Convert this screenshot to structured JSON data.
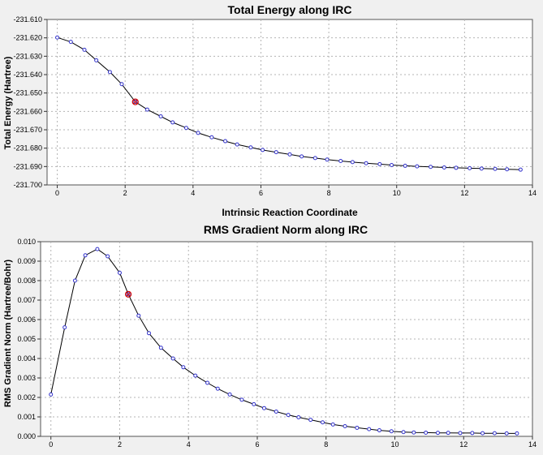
{
  "chart_data": [
    {
      "type": "line",
      "title": "Total Energy along IRC",
      "xlabel": "Intrinsic Reaction Coordinate",
      "ylabel": "Total Energy (Hartree)",
      "xlim": [
        -0.3,
        14
      ],
      "ylim": [
        -231.7,
        -231.61
      ],
      "x_ticks": [
        "0",
        "2",
        "4",
        "6",
        "8",
        "10",
        "12",
        "14"
      ],
      "y_ticks": [
        "-231.610",
        "-231.620",
        "-231.630",
        "-231.640",
        "-231.650",
        "-231.660",
        "-231.670",
        "-231.680",
        "-231.690",
        "-231.700"
      ],
      "grid": true,
      "series": [
        {
          "x": [
            0,
            0.4,
            0.8,
            1.15,
            1.55,
            1.9,
            2.3,
            2.65,
            3.05,
            3.4,
            3.8,
            4.15,
            4.55,
            4.95,
            5.3,
            5.7,
            6.05,
            6.45,
            6.85,
            7.2,
            7.6,
            7.95,
            8.35,
            8.7,
            9.1,
            9.5,
            9.85,
            10.25,
            10.6,
            11.0,
            11.4,
            11.75,
            12.15,
            12.5,
            12.9,
            13.25,
            13.65
          ],
          "y": [
            -231.6198,
            -231.6222,
            -231.6265,
            -231.6322,
            -231.6386,
            -231.6452,
            -231.6548,
            -231.659,
            -231.6627,
            -231.666,
            -231.669,
            -231.6717,
            -231.6741,
            -231.6762,
            -231.678,
            -231.6796,
            -231.681,
            -231.6822,
            -231.6834,
            -231.6845,
            -231.6854,
            -231.6862,
            -231.687,
            -231.6876,
            -231.6882,
            -231.6887,
            -231.6892,
            -231.6896,
            -231.6899,
            -231.6902,
            -231.6905,
            -231.6907,
            -231.6909,
            -231.6911,
            -231.6913,
            -231.6915,
            -231.6917
          ],
          "highlight_index": 6
        }
      ]
    },
    {
      "type": "line",
      "title": "RMS Gradient Norm along IRC",
      "xlabel": "",
      "ylabel": "RMS Gradient Norm (Hartree/Bohr)",
      "xlim": [
        -0.3,
        14
      ],
      "ylim": [
        0,
        0.01
      ],
      "x_ticks": [
        "0",
        "2",
        "4",
        "6",
        "8",
        "10",
        "12",
        "14"
      ],
      "y_ticks": [
        "0.010",
        "0.009",
        "0.008",
        "0.007",
        "0.006",
        "0.005",
        "0.004",
        "0.003",
        "0.002",
        "0.001",
        "0.000"
      ],
      "grid": true,
      "series": [
        {
          "x": [
            0,
            0.4,
            0.7,
            1.0,
            1.35,
            1.65,
            2.0,
            2.25,
            2.55,
            2.85,
            3.2,
            3.55,
            3.85,
            4.2,
            4.55,
            4.85,
            5.2,
            5.55,
            5.9,
            6.2,
            6.55,
            6.9,
            7.2,
            7.55,
            7.9,
            8.2,
            8.55,
            8.9,
            9.25,
            9.55,
            9.9,
            10.25,
            10.55,
            10.9,
            11.25,
            11.55,
            11.9,
            12.25,
            12.55,
            12.9,
            13.25,
            13.55
          ],
          "y": [
            0.00215,
            0.0056,
            0.008,
            0.0093,
            0.00962,
            0.00925,
            0.0084,
            0.0073,
            0.0062,
            0.0053,
            0.00455,
            0.004,
            0.00355,
            0.00312,
            0.00275,
            0.00245,
            0.00215,
            0.00188,
            0.00165,
            0.00145,
            0.00127,
            0.0011,
            0.00098,
            0.00085,
            0.00072,
            0.00061,
            0.00052,
            0.00044,
            0.00037,
            0.00031,
            0.00026,
            0.00022,
            0.0002,
            0.00019,
            0.00018,
            0.00018,
            0.00017,
            0.00017,
            0.00016,
            0.00016,
            0.00015,
            0.00015
          ],
          "highlight_index": 7
        }
      ]
    }
  ],
  "colors": {
    "background": "#f0f0f0",
    "plot_area": "#ffffff",
    "grid": "#b4b4b4",
    "line": "#000000",
    "marker": "#3333cc",
    "highlight": "#cc0000"
  }
}
